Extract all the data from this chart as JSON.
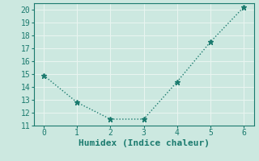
{
  "x": [
    0,
    1,
    2,
    3,
    4,
    5,
    6
  ],
  "y": [
    14.9,
    12.8,
    11.5,
    11.5,
    14.4,
    17.5,
    20.2
  ],
  "xlabel": "Humidex (Indice chaleur)",
  "xlim": [
    -0.3,
    6.3
  ],
  "ylim": [
    11,
    20.5
  ],
  "yticks": [
    11,
    12,
    13,
    14,
    15,
    16,
    17,
    18,
    19,
    20
  ],
  "xticks": [
    0,
    1,
    2,
    3,
    4,
    5,
    6
  ],
  "line_color": "#1a7a6e",
  "marker": "*",
  "marker_size": 5,
  "linewidth": 1.0,
  "linestyle": "dotted",
  "bg_color": "#cce8e0",
  "grid_color": "#e8f4f0",
  "tick_label_fontsize": 7,
  "xlabel_fontsize": 8
}
